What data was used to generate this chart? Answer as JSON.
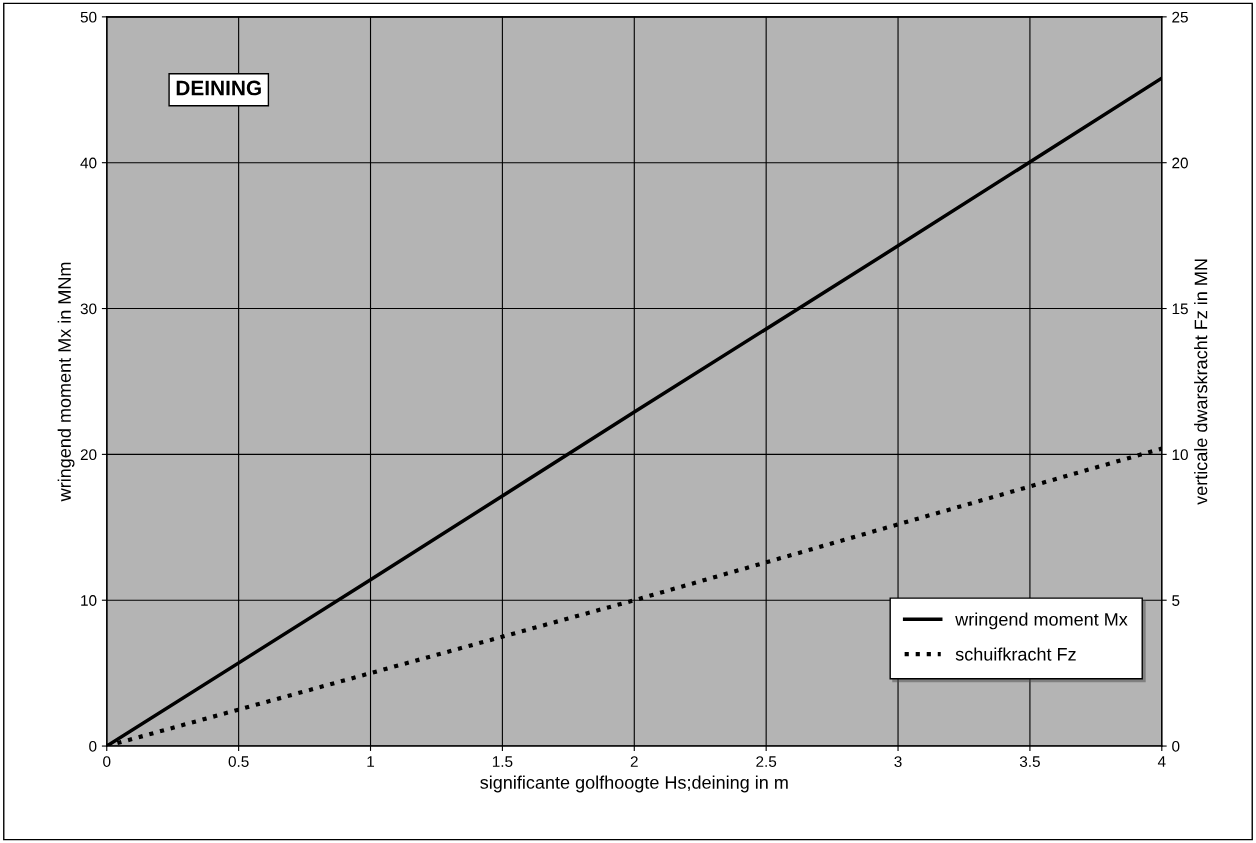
{
  "chart_data": {
    "type": "line",
    "xlabel": "significante golfhoogte Hs;deining in m",
    "ylabel": "wringend moment Mx in MNm",
    "y2label": "verticale dwarskracht Fz in MN",
    "x": [
      0,
      1,
      2,
      3,
      4
    ],
    "series": [
      {
        "name": "wringend moment Mx",
        "color": "#000000",
        "line_style": "solid",
        "values": [
          0,
          11.4,
          22.9,
          34.3,
          45.8
        ]
      },
      {
        "name": "schuifkracht Fz",
        "color": "#000000",
        "line_style": "dotted",
        "axis": "y2",
        "values": [
          0,
          2.5,
          5.0,
          7.6,
          10.2
        ]
      }
    ],
    "xlim": [
      0,
      4
    ],
    "xticks": [
      0,
      0.5,
      1,
      1.5,
      2,
      2.5,
      3,
      3.5,
      4
    ],
    "ylim": [
      0,
      50
    ],
    "yticks": [
      0,
      10,
      20,
      30,
      40,
      50
    ],
    "y2lim": [
      0,
      25
    ],
    "y2ticks": [
      0,
      5,
      10,
      15,
      20,
      25
    ],
    "annotations": [
      "DEINING"
    ],
    "grid": true,
    "legend": "bottom right",
    "marker": "none"
  }
}
